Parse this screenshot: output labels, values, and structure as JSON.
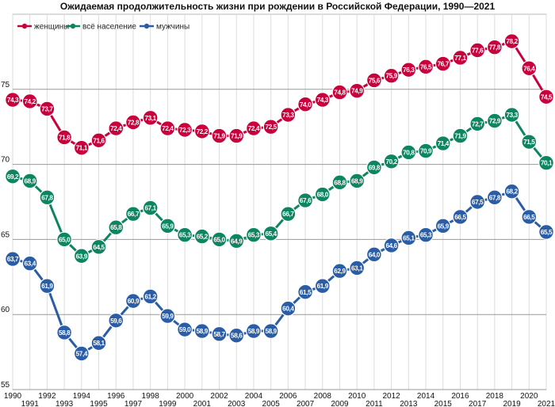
{
  "chart_data": {
    "type": "line",
    "title": "Ожидаемая продолжительность жизни при рождении в Российской Федерации, 1990—2021",
    "xlabel": "",
    "ylabel": "",
    "x": [
      1990,
      1991,
      1992,
      1993,
      1994,
      1995,
      1996,
      1997,
      1998,
      1999,
      2000,
      2001,
      2002,
      2003,
      2004,
      2005,
      2006,
      2007,
      2008,
      2009,
      2010,
      2011,
      2012,
      2013,
      2014,
      2015,
      2016,
      2017,
      2018,
      2019,
      2020,
      2021
    ],
    "ylim": [
      55,
      80
    ],
    "yticks": [
      55,
      60,
      65,
      70,
      75
    ],
    "grid": true,
    "legend_position": "top-left",
    "series": [
      {
        "name": "женщины",
        "color": "#c8003c",
        "values": [
          74.3,
          74.2,
          73.7,
          71.8,
          71.1,
          71.6,
          72.4,
          72.8,
          73.1,
          72.4,
          72.3,
          72.2,
          71.9,
          71.9,
          72.4,
          72.5,
          73.3,
          74.0,
          74.3,
          74.8,
          74.9,
          75.6,
          75.9,
          76.3,
          76.5,
          76.7,
          77.1,
          77.6,
          77.8,
          78.2,
          76.4,
          74.5
        ],
        "labels": [
          "74,3",
          "74,2",
          "73,7",
          "71,8",
          "71,1",
          "71,6",
          "72,4",
          "72,8",
          "73,1",
          "72,4",
          "72,3",
          "72,2",
          "71,9",
          "71,9",
          "72,4",
          "72,5",
          "73,3",
          "74,0",
          "74,3",
          "74,8",
          "74,9",
          "75,6",
          "75,9",
          "76,3",
          "76,5",
          "76,7",
          "77,1",
          "77,6",
          "77,8",
          "78,2",
          "76,4",
          "74,5"
        ]
      },
      {
        "name": "всё население",
        "color": "#0e8561",
        "values": [
          69.2,
          68.9,
          67.8,
          65.0,
          63.9,
          64.5,
          65.8,
          66.7,
          67.1,
          65.9,
          65.3,
          65.2,
          65.0,
          64.9,
          65.3,
          65.4,
          66.7,
          67.6,
          68.0,
          68.8,
          68.9,
          69.8,
          70.2,
          70.8,
          70.9,
          71.4,
          71.9,
          72.7,
          72.9,
          73.3,
          71.5,
          70.1
        ],
        "labels": [
          "69,2",
          "68,9",
          "67,8",
          "65,0",
          "63,9",
          "64,5",
          "65,8",
          "66,7",
          "67,1",
          "65,9",
          "65,3",
          "65,2",
          "65,0",
          "64,9",
          "65,3",
          "65,4",
          "66,7",
          "67,6",
          "68,0",
          "68,8",
          "68,9",
          "69,8",
          "70,2",
          "70,8",
          "70,9",
          "71,4",
          "71,9",
          "72,7",
          "72,9",
          "73,3",
          "71,5",
          "70,1"
        ]
      },
      {
        "name": "мужчины",
        "color": "#2a5da5",
        "values": [
          63.7,
          63.4,
          61.9,
          58.8,
          57.4,
          58.1,
          59.6,
          60.9,
          61.2,
          59.9,
          59.0,
          58.9,
          58.7,
          58.6,
          58.9,
          58.9,
          60.4,
          61.5,
          61.9,
          62.9,
          63.1,
          64.0,
          64.6,
          65.1,
          65.3,
          65.9,
          66.5,
          67.5,
          67.8,
          68.2,
          66.5,
          65.5
        ],
        "labels": [
          "63,7",
          "63,4",
          "61,9",
          "58,8",
          "57,4",
          "58,1",
          "59,6",
          "60,9",
          "61,2",
          "59,9",
          "59,0",
          "58,9",
          "58,7",
          "58,6",
          "58,9",
          "58,9",
          "60,4",
          "61,5",
          "61,9",
          "62,9",
          "63,1",
          "64,0",
          "64,6",
          "65,1",
          "65,3",
          "65,9",
          "66,5",
          "67,5",
          "67,8",
          "68,2",
          "66,5",
          "65,5"
        ]
      }
    ]
  }
}
